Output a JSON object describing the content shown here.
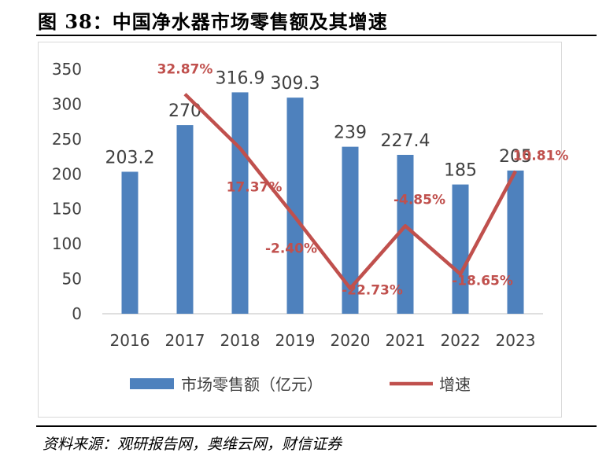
{
  "figure": {
    "title": "图 38：中国净水器市场零售额及其增速",
    "source": "资料来源：观研报告网，奥维云网，财信证券"
  },
  "chart_data": {
    "type": "bar",
    "categories": [
      "2016",
      "2017",
      "2018",
      "2019",
      "2020",
      "2021",
      "2022",
      "2023"
    ],
    "series": [
      {
        "name": "市场零售额（亿元）",
        "type": "bar",
        "axis": "left",
        "color": "#4e81bd",
        "values": [
          203.2,
          270,
          316.9,
          309.3,
          239,
          227.4,
          185,
          205
        ],
        "labels": [
          "203.2",
          "270",
          "316.9",
          "309.3",
          "239",
          "227.4",
          "185",
          "205"
        ]
      },
      {
        "name": "增速",
        "type": "line",
        "axis": "right",
        "color": "#c0504d",
        "x": [
          "2017",
          "2018",
          "2019",
          "2020",
          "2021",
          "2022",
          "2023"
        ],
        "values": [
          32.87,
          17.37,
          -2.4,
          -22.73,
          -4.85,
          -18.65,
          10.81
        ],
        "labels": [
          "32.87%",
          "17.37%",
          "-2.40%",
          "-22.73%",
          "-4.85%",
          "-18.65%",
          "10.81%"
        ]
      }
    ],
    "y_axis": {
      "ticks": [
        "0",
        "50",
        "100",
        "150",
        "200",
        "250",
        "300",
        "350"
      ],
      "ylim": [
        0,
        350
      ]
    },
    "y2_axis_hidden": {
      "ylim": [
        -30,
        40
      ]
    },
    "grid": false,
    "legend": "bottom"
  }
}
